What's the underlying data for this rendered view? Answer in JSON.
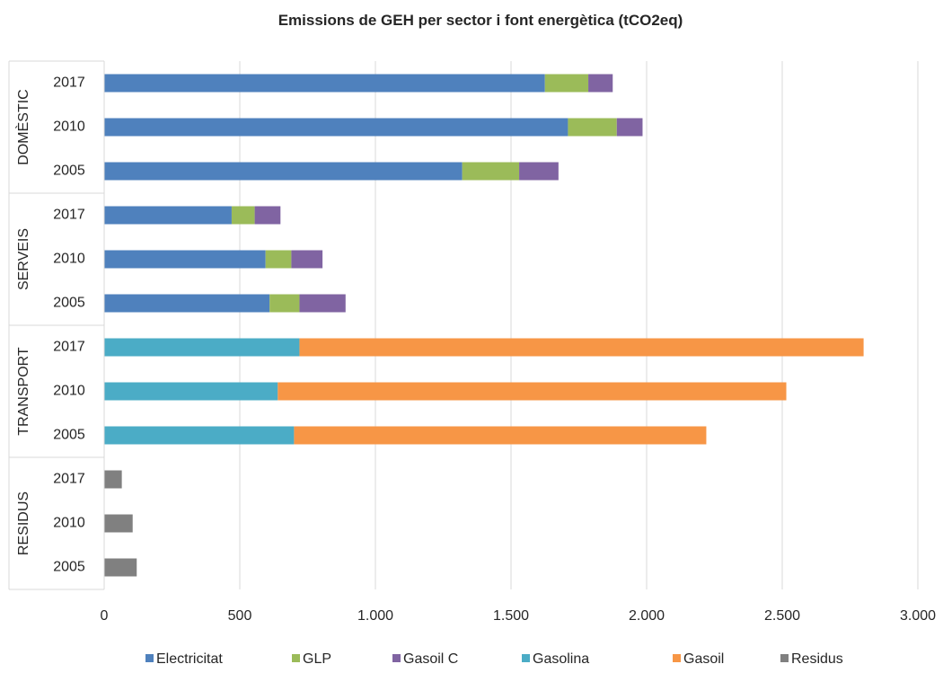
{
  "chart_data": {
    "type": "bar",
    "orientation": "horizontal",
    "stacked": true,
    "title": "Emissions de GEH per sector i font energètica (tCO2eq)",
    "xlabel": "",
    "ylabel": "",
    "xlim": [
      0,
      3000
    ],
    "x_ticks": [
      "0",
      "500",
      "1.000",
      "1.500",
      "2.000",
      "2.500",
      "3.000"
    ],
    "grid": "vertical",
    "legend_position": "bottom",
    "groups": [
      {
        "name": "DOMÈSTIC",
        "categories": [
          "2017",
          "2010",
          "2005"
        ]
      },
      {
        "name": "SERVEIS",
        "categories": [
          "2017",
          "2010",
          "2005"
        ]
      },
      {
        "name": "TRANSPORT",
        "categories": [
          "2017",
          "2010",
          "2005"
        ]
      },
      {
        "name": "RESIDUS",
        "categories": [
          "2017",
          "2010",
          "2005"
        ]
      }
    ],
    "categories": [
      "DOMÈSTIC 2017",
      "DOMÈSTIC 2010",
      "DOMÈSTIC 2005",
      "SERVEIS 2017",
      "SERVEIS 2010",
      "SERVEIS 2005",
      "TRANSPORT 2017",
      "TRANSPORT 2010",
      "TRANSPORT 2005",
      "RESIDUS 2017",
      "RESIDUS 2010",
      "RESIDUS 2005"
    ],
    "series": [
      {
        "name": "Electricitat",
        "color": "#4f81bd",
        "values": [
          1625,
          1710,
          1320,
          470,
          595,
          610,
          0,
          0,
          0,
          0,
          0,
          0
        ]
      },
      {
        "name": "GLP",
        "color": "#9bbb59",
        "values": [
          160,
          180,
          210,
          85,
          95,
          110,
          0,
          0,
          0,
          0,
          0,
          0
        ]
      },
      {
        "name": "Gasoil C",
        "color": "#8064a2",
        "values": [
          90,
          95,
          145,
          95,
          115,
          170,
          0,
          0,
          0,
          0,
          0,
          0
        ]
      },
      {
        "name": "Gasolina",
        "color": "#4bacc6",
        "values": [
          0,
          0,
          0,
          0,
          0,
          0,
          720,
          640,
          700,
          0,
          0,
          0
        ]
      },
      {
        "name": "Gasoil",
        "color": "#f79646",
        "values": [
          0,
          0,
          0,
          0,
          0,
          0,
          2080,
          1875,
          1520,
          0,
          0,
          0
        ]
      },
      {
        "name": "Residus",
        "color": "#808080",
        "values": [
          0,
          0,
          0,
          0,
          0,
          0,
          0,
          0,
          0,
          65,
          105,
          120
        ]
      }
    ]
  }
}
